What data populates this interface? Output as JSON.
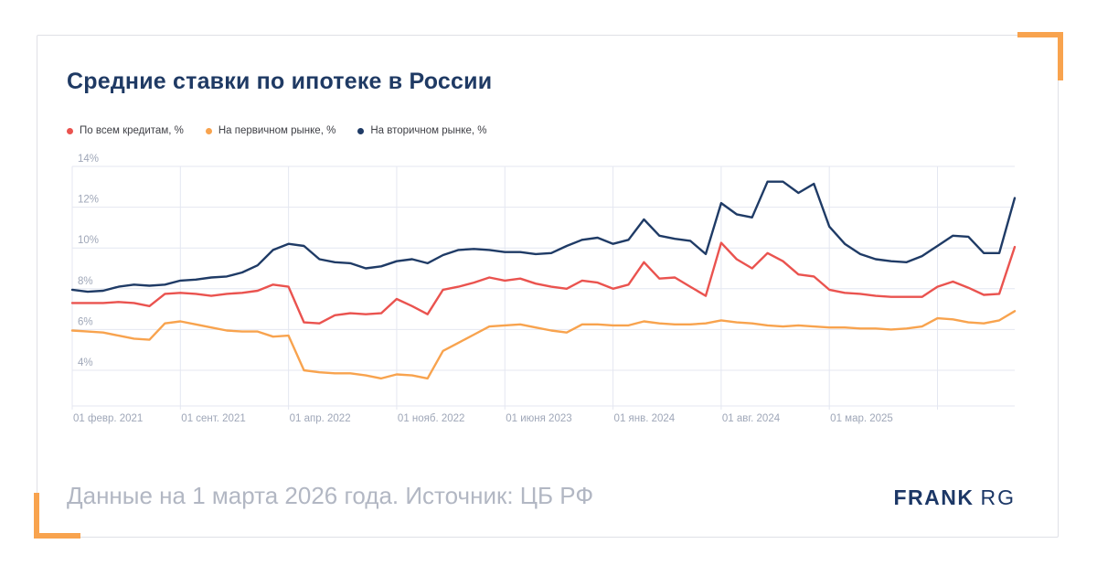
{
  "title": "Средние ставки по ипотеке в России",
  "footer": {
    "caption": "Данные на 1 марта 2026 года. Источник: ЦБ РФ",
    "brand_bold": "FRANK",
    "brand_light": "RG"
  },
  "colors": {
    "accent_orange": "#f8a34e",
    "series_all_credits": "#ea534f",
    "series_primary_market": "#f8a34e",
    "series_secondary_market": "#1f3b66",
    "grid": "#e4e7f1",
    "axis_text": "#9fa7b8",
    "title_text": "#1f3a64",
    "footer_text": "#b2b7c3",
    "brand_navy": "#1c3766",
    "card_border": "#dfe0e6"
  },
  "chart_data": {
    "type": "line",
    "title": "Средние ставки по ипотеке в России",
    "xlabel": "",
    "ylabel": "",
    "frequency": "monthly",
    "x_start": "февраль 2021",
    "x_end": "март 2026",
    "grid": true,
    "legend_position": "top-left",
    "ylim": [
      2.25,
      14
    ],
    "yticks": [
      4,
      6,
      8,
      10,
      12,
      14
    ],
    "ytick_suffix": "%",
    "x_ticks": [
      {
        "index": 0,
        "label": "01 февр. 2021"
      },
      {
        "index": 7,
        "label": "01 сент. 2021"
      },
      {
        "index": 14,
        "label": "01 апр. 2022"
      },
      {
        "index": 21,
        "label": "01 нояб. 2022"
      },
      {
        "index": 28,
        "label": "01 июня 2023"
      },
      {
        "index": 35,
        "label": "01 янв. 2024"
      },
      {
        "index": 42,
        "label": "01 авг. 2024"
      },
      {
        "index": 49,
        "label": "01 мар. 2025"
      },
      {
        "index": 56,
        "label": ""
      }
    ],
    "series": [
      {
        "key": "all-credits",
        "name": "По всем кредитам, %",
        "color": "#ea534f",
        "values": [
          7.3,
          7.3,
          7.3,
          7.35,
          7.3,
          7.15,
          7.75,
          7.8,
          7.75,
          7.65,
          7.75,
          7.8,
          7.9,
          8.2,
          8.1,
          6.35,
          6.3,
          6.7,
          6.8,
          6.75,
          6.8,
          7.5,
          7.15,
          6.75,
          7.95,
          8.1,
          8.3,
          8.55,
          8.4,
          8.5,
          8.25,
          8.1,
          8.0,
          8.4,
          8.3,
          8.0,
          8.2,
          9.3,
          8.5,
          8.55,
          8.1,
          7.65,
          10.25,
          9.45,
          9.0,
          9.75,
          9.35,
          8.7,
          8.6,
          7.95,
          7.8,
          7.75,
          7.65,
          7.6,
          7.6,
          7.6,
          8.1,
          8.35,
          8.05,
          7.7,
          7.75,
          10.05
        ]
      },
      {
        "key": "primary-market",
        "name": "На первичном рынке, %",
        "color": "#f8a34e",
        "values": [
          5.95,
          5.9,
          5.85,
          5.7,
          5.55,
          5.5,
          6.3,
          6.4,
          6.25,
          6.1,
          5.95,
          5.9,
          5.9,
          5.65,
          5.7,
          4.0,
          3.9,
          3.85,
          3.85,
          3.75,
          3.6,
          3.8,
          3.75,
          3.6,
          4.95,
          5.35,
          5.75,
          6.15,
          6.2,
          6.25,
          6.1,
          5.95,
          5.85,
          6.25,
          6.25,
          6.2,
          6.2,
          6.4,
          6.3,
          6.25,
          6.25,
          6.3,
          6.45,
          6.35,
          6.3,
          6.2,
          6.15,
          6.2,
          6.15,
          6.1,
          6.1,
          6.05,
          6.05,
          6.0,
          6.05,
          6.15,
          6.55,
          6.5,
          6.35,
          6.3,
          6.45,
          6.9
        ]
      },
      {
        "key": "secondary-market",
        "name": "На вторичном рынке, %",
        "color": "#1f3b66",
        "values": [
          7.95,
          7.85,
          7.9,
          8.1,
          8.2,
          8.15,
          8.2,
          8.4,
          8.45,
          8.55,
          8.6,
          8.8,
          9.15,
          9.9,
          10.2,
          10.1,
          9.45,
          9.3,
          9.25,
          9.0,
          9.1,
          9.35,
          9.45,
          9.25,
          9.65,
          9.9,
          9.95,
          9.9,
          9.8,
          9.8,
          9.7,
          9.75,
          10.1,
          10.4,
          10.5,
          10.2,
          10.4,
          11.4,
          10.6,
          10.45,
          10.35,
          9.7,
          12.2,
          11.65,
          11.5,
          13.25,
          13.25,
          12.7,
          13.15,
          11.05,
          10.2,
          9.7,
          9.45,
          9.35,
          9.3,
          9.6,
          10.1,
          10.6,
          10.55,
          9.75,
          9.75,
          12.45
        ]
      }
    ]
  }
}
